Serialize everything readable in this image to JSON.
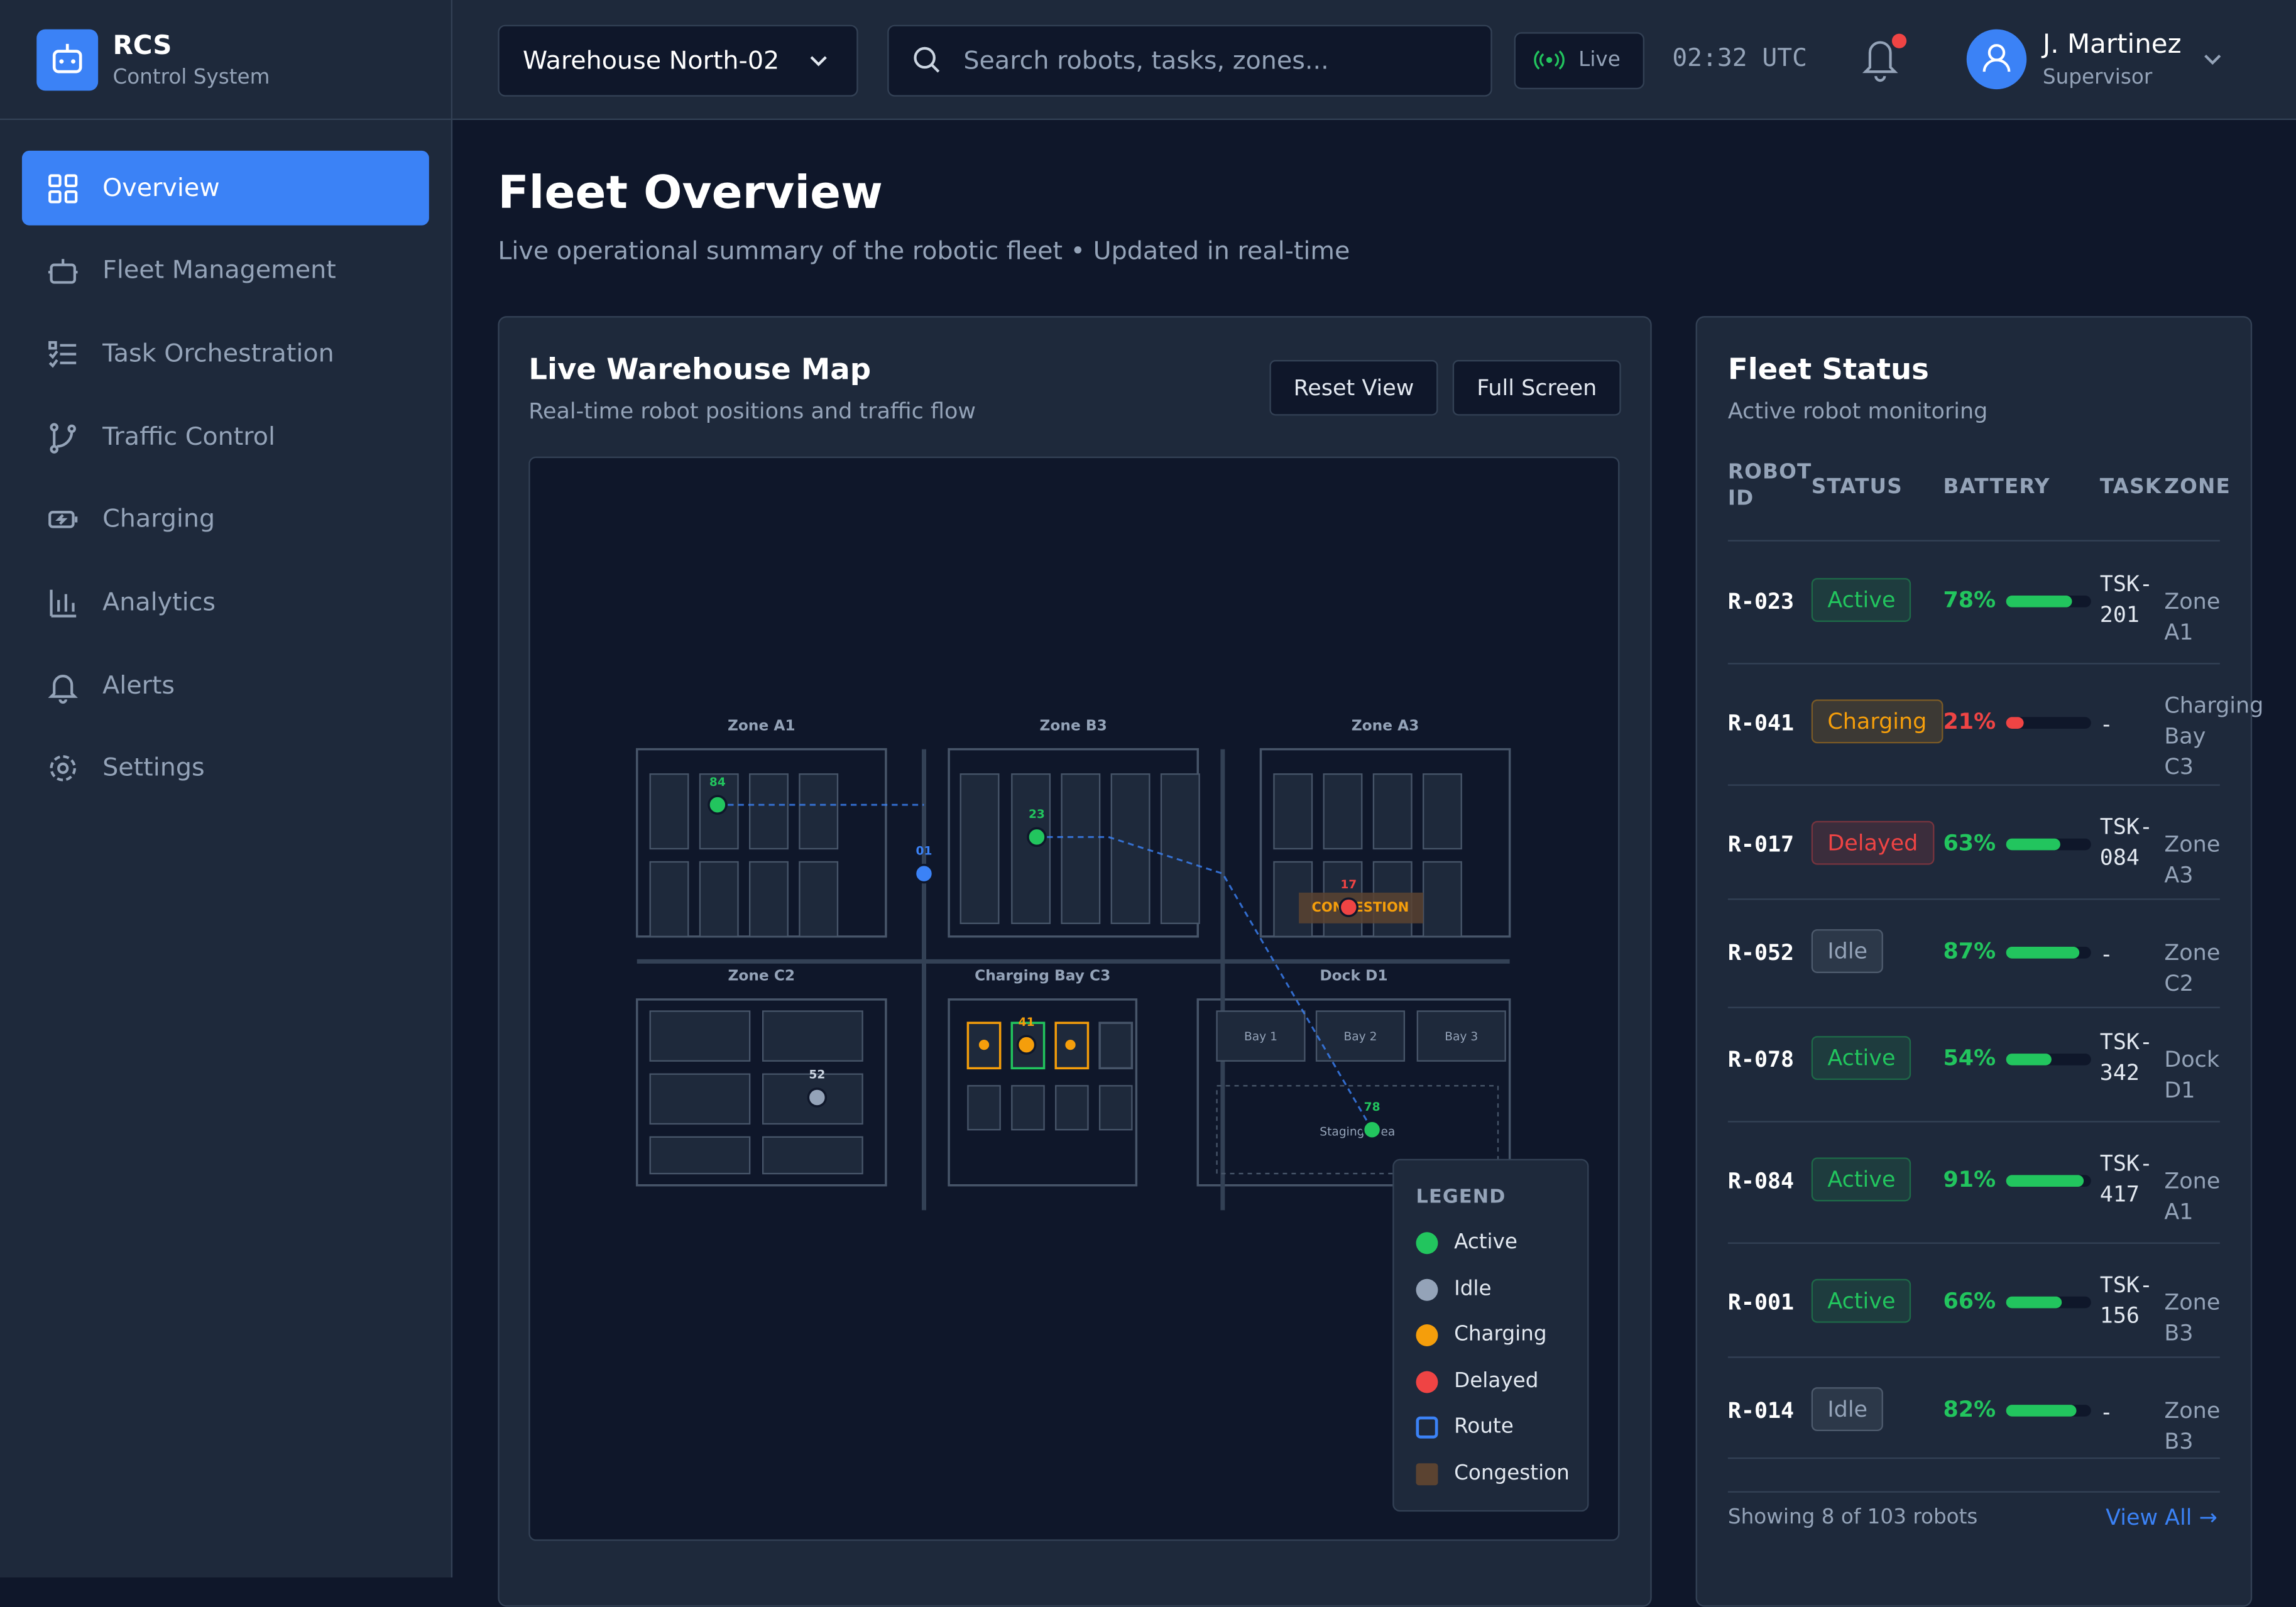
{
  "brand": {
    "name": "RCS",
    "subtitle": "Control System"
  },
  "nav": [
    "Overview",
    "Fleet Management",
    "Task Orchestration",
    "Traffic Control",
    "Charging",
    "Analytics",
    "Alerts",
    "Settings"
  ],
  "topbar": {
    "warehouse": "Warehouse North-02",
    "search_placeholder": "Search robots, tasks, zones...",
    "live": "Live",
    "time": "02:32 UTC",
    "user": {
      "name": "J. Martinez",
      "role": "Supervisor"
    }
  },
  "page": {
    "title": "Fleet Overview",
    "subtitle": "Live operational summary of the robotic fleet • Updated in real-time"
  },
  "map": {
    "title": "Live Warehouse Map",
    "subtitle": "Real-time robot positions and traffic flow",
    "buttons": [
      "Reset View",
      "Full Screen"
    ],
    "zones": [
      "Zone A1",
      "Zone B3",
      "Zone A3",
      "Zone C2",
      "Charging Bay C3",
      "Dock D1"
    ],
    "bays": [
      "Bay 1",
      "Bay 2",
      "Bay 3"
    ],
    "staging": "Staging Area",
    "congestion": "CONGESTION",
    "robots": [
      {
        "id": "84",
        "status": "Active"
      },
      {
        "id": "01",
        "status": "Route"
      },
      {
        "id": "23",
        "status": "Active"
      },
      {
        "id": "17",
        "status": "Delayed"
      },
      {
        "id": "41",
        "status": "Charging"
      },
      {
        "id": "52",
        "status": "Idle"
      },
      {
        "id": "78",
        "status": "Active"
      }
    ],
    "legend": {
      "title": "LEGEND",
      "items": [
        "Active",
        "Idle",
        "Charging",
        "Delayed",
        "Route",
        "Congestion"
      ]
    }
  },
  "fleet": {
    "title": "Fleet Status",
    "subtitle": "Active robot monitoring",
    "columns": [
      "ROBOT ID",
      "STATUS",
      "BATTERY",
      "TASK",
      "ZONE"
    ],
    "rows": [
      {
        "id": "R-023",
        "status": "Active",
        "battery": 78,
        "battery_label": "78%",
        "task": "TSK-201",
        "zone": "Zone A1"
      },
      {
        "id": "R-041",
        "status": "Charging",
        "battery": 21,
        "battery_label": "21%",
        "task": "-",
        "zone": "Charging Bay C3"
      },
      {
        "id": "R-017",
        "status": "Delayed",
        "battery": 63,
        "battery_label": "63%",
        "task": "TSK-084",
        "zone": "Zone A3"
      },
      {
        "id": "R-052",
        "status": "Idle",
        "battery": 87,
        "battery_label": "87%",
        "task": "-",
        "zone": "Zone C2"
      },
      {
        "id": "R-078",
        "status": "Active",
        "battery": 54,
        "battery_label": "54%",
        "task": "TSK-342",
        "zone": "Dock D1"
      },
      {
        "id": "R-084",
        "status": "Active",
        "battery": 91,
        "battery_label": "91%",
        "task": "TSK-417",
        "zone": "Zone A1"
      },
      {
        "id": "R-001",
        "status": "Active",
        "battery": 66,
        "battery_label": "66%",
        "task": "TSK-156",
        "zone": "Zone B3"
      },
      {
        "id": "R-014",
        "status": "Idle",
        "battery": 82,
        "battery_label": "82%",
        "task": "-",
        "zone": "Zone B3"
      }
    ],
    "showing": "Showing 8 of 103 robots",
    "view_all": "View All →"
  }
}
